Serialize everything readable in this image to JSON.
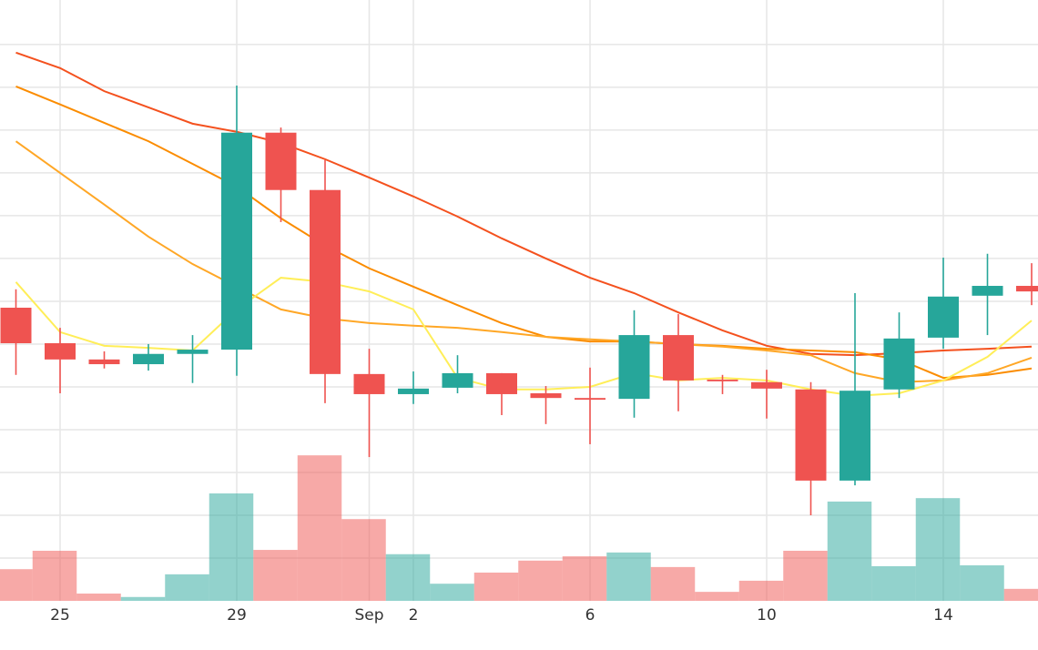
{
  "chart_data": {
    "type": "candlestick",
    "categories": [
      null,
      "25",
      null,
      null,
      null,
      "29",
      null,
      null,
      "Sep",
      "2",
      null,
      null,
      null,
      "6",
      null,
      null,
      null,
      "10",
      null,
      null,
      null,
      "14",
      null,
      null
    ],
    "open": [
      6.85,
      6.02,
      5.64,
      5.53,
      5.77,
      5.87,
      10.94,
      9.6,
      5.3,
      4.83,
      4.98,
      5.32,
      4.85,
      4.74,
      4.72,
      6.21,
      5.17,
      5.11,
      4.94,
      2.81,
      4.94,
      6.15,
      7.13,
      7.36
    ],
    "high": [
      7.28,
      6.38,
      5.83,
      6.0,
      6.21,
      12.04,
      11.06,
      10.3,
      5.89,
      5.36,
      5.74,
      5.32,
      5.02,
      5.45,
      6.79,
      6.7,
      5.28,
      5.4,
      5.11,
      7.19,
      6.74,
      8.02,
      8.11,
      7.89
    ],
    "low": [
      5.28,
      4.85,
      5.43,
      5.38,
      5.09,
      5.26,
      8.85,
      4.62,
      3.36,
      4.6,
      4.85,
      4.34,
      4.13,
      3.66,
      4.28,
      4.43,
      4.83,
      4.26,
      2.0,
      2.7,
      4.74,
      5.89,
      6.21,
      6.91
    ],
    "close": [
      6.02,
      5.64,
      5.53,
      5.77,
      5.87,
      10.94,
      9.6,
      5.3,
      4.83,
      4.96,
      5.32,
      4.83,
      4.74,
      4.7,
      6.21,
      5.15,
      5.13,
      4.96,
      2.81,
      4.91,
      6.13,
      7.11,
      7.36,
      7.23
    ],
    "volume": [
      0.74,
      1.17,
      0.17,
      0.09,
      0.62,
      2.51,
      1.19,
      3.4,
      1.91,
      1.09,
      0.4,
      0.66,
      0.94,
      1.04,
      1.13,
      0.79,
      0.21,
      0.47,
      1.17,
      2.32,
      0.81,
      2.4,
      0.83,
      0.28
    ],
    "up_color": "#26a69a",
    "down_color": "#ef5350",
    "lines": [
      {
        "color": "#f4511e",
        "values": [
          12.81,
          12.45,
          11.91,
          11.53,
          11.15,
          10.96,
          10.7,
          10.32,
          9.89,
          9.45,
          8.98,
          8.47,
          8.0,
          7.55,
          7.19,
          6.74,
          6.32,
          5.96,
          5.77,
          5.74,
          5.79,
          5.85,
          5.89,
          5.94
        ]
      },
      {
        "color": "#fb8c00",
        "values": [
          12.02,
          11.6,
          11.17,
          10.74,
          10.21,
          9.68,
          8.94,
          8.3,
          7.77,
          7.34,
          6.91,
          6.49,
          6.17,
          6.06,
          6.06,
          6.0,
          5.96,
          5.89,
          5.85,
          5.81,
          5.64,
          5.21,
          5.28,
          5.43
        ]
      },
      {
        "color": "#ffa726",
        "values": [
          10.74,
          10.0,
          9.26,
          8.51,
          7.87,
          7.34,
          6.81,
          6.6,
          6.49,
          6.43,
          6.38,
          6.28,
          6.17,
          6.11,
          6.06,
          6.0,
          5.94,
          5.85,
          5.74,
          5.32,
          5.11,
          5.15,
          5.32,
          5.68
        ]
      },
      {
        "color": "#ffee58",
        "values": [
          7.45,
          6.28,
          5.96,
          5.91,
          5.85,
          6.81,
          7.55,
          7.45,
          7.23,
          6.81,
          5.21,
          4.94,
          4.94,
          5.0,
          5.32,
          5.15,
          5.21,
          5.15,
          4.94,
          4.79,
          4.85,
          5.15,
          5.7,
          6.55
        ]
      }
    ],
    "ylim": [
      0,
      14.04
    ],
    "yticks": [
      1,
      2,
      3,
      4,
      5,
      6,
      7,
      8,
      9,
      10,
      11,
      12,
      13
    ],
    "grid": true
  }
}
